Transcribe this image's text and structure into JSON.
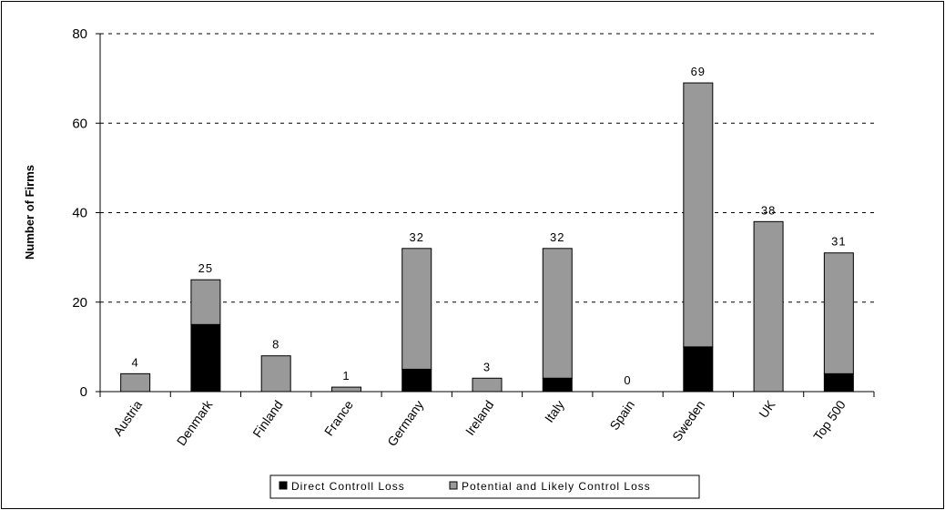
{
  "chart_data": {
    "type": "bar",
    "stacked": true,
    "categories": [
      "Austria",
      "Denmark",
      "Finland",
      "France",
      "Germany",
      "Ireland",
      "Italy",
      "Spain",
      "Sweden",
      "UK",
      "Top 500"
    ],
    "series": [
      {
        "name": "Direct Controll Loss",
        "color": "#000000",
        "values": [
          0,
          15,
          0,
          0,
          5,
          0,
          3,
          0,
          10,
          0,
          4
        ]
      },
      {
        "name": "Potential and Likely Control Loss",
        "color": "#999999",
        "values": [
          4,
          10,
          8,
          1,
          27,
          3,
          29,
          0,
          59,
          38,
          27
        ]
      }
    ],
    "totals": [
      4,
      25,
      8,
      1,
      32,
      3,
      32,
      0,
      69,
      38,
      31
    ],
    "ylabel": "Number of Firms",
    "xlabel": "",
    "ylim": [
      0,
      80
    ],
    "yticks": [
      0,
      20,
      40,
      60,
      80
    ],
    "grid": "dashed horizontal",
    "legend_position": "bottom"
  }
}
